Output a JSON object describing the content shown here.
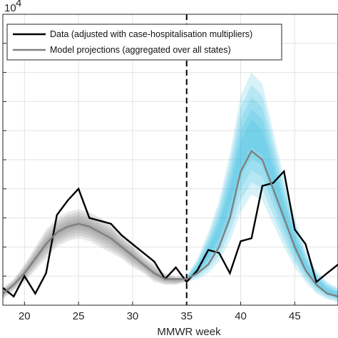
{
  "chart_data": {
    "type": "line",
    "xlabel": "MMWR week",
    "xlim": [
      18,
      49
    ],
    "ylim": [
      0,
      10
    ],
    "y_exponent": "× 10^4",
    "exponent_base": "10",
    "exponent_power": "4",
    "x_ticks": [
      20,
      25,
      30,
      35,
      40,
      45
    ],
    "y_ticks": [
      1,
      2,
      3,
      4,
      5,
      6,
      7,
      8,
      9,
      10
    ],
    "grid": true,
    "legend_position": "top-left",
    "vertical_line": {
      "x": 35,
      "style": "dashed"
    },
    "series": [
      {
        "name": "Data (adjusted with case-hospitalisation multipliers)",
        "color": "#000000",
        "x": [
          18,
          19,
          20,
          21,
          22,
          23,
          24,
          25,
          26,
          27,
          28,
          29,
          30,
          31,
          32,
          33,
          34,
          35,
          36,
          37,
          38,
          39,
          40,
          41,
          42,
          43,
          44,
          45,
          46,
          47,
          48,
          49
        ],
        "values": [
          0.6,
          0.3,
          1.0,
          0.4,
          1.1,
          3.1,
          3.6,
          4.0,
          3.0,
          2.9,
          2.8,
          2.4,
          2.1,
          1.8,
          1.5,
          0.9,
          1.3,
          0.8,
          1.2,
          1.9,
          1.8,
          1.1,
          2.2,
          2.3,
          4.1,
          4.2,
          4.6,
          2.6,
          2.1,
          0.8,
          1.1,
          1.4
        ]
      },
      {
        "name": "Model projections (aggregated over all states)",
        "color": "#808080",
        "x": [
          18,
          19,
          20,
          21,
          22,
          23,
          24,
          25,
          26,
          27,
          28,
          29,
          30,
          31,
          32,
          33,
          34,
          35,
          36,
          37,
          38,
          39,
          40,
          41,
          42,
          43,
          44,
          45,
          46,
          47,
          48,
          49
        ],
        "values": [
          0.4,
          0.7,
          1.1,
          1.6,
          2.1,
          2.5,
          2.7,
          2.8,
          2.7,
          2.5,
          2.3,
          2.0,
          1.7,
          1.4,
          1.1,
          0.9,
          0.9,
          0.9,
          1.1,
          1.4,
          2.0,
          3.0,
          4.6,
          5.3,
          5.0,
          4.0,
          3.0,
          2.0,
          1.2,
          0.7,
          0.4,
          0.3
        ]
      }
    ],
    "uncertainty_bands": [
      {
        "x": [
          18,
          19,
          20,
          21,
          22,
          23,
          24,
          25,
          26,
          27,
          28,
          29,
          30,
          31,
          32,
          33,
          34,
          35
        ],
        "lower": [
          0.2,
          0.5,
          0.8,
          1.2,
          1.6,
          2.0,
          2.2,
          2.3,
          2.2,
          2.0,
          1.8,
          1.6,
          1.3,
          1.1,
          0.8,
          0.7,
          0.7,
          0.8
        ],
        "upper": [
          0.6,
          0.9,
          1.4,
          2.0,
          2.6,
          3.0,
          3.2,
          3.3,
          3.2,
          3.0,
          2.8,
          2.4,
          2.1,
          1.7,
          1.4,
          1.1,
          1.0,
          1.0
        ],
        "color": "#808080"
      },
      {
        "x": [
          35,
          36,
          37,
          38,
          39,
          40,
          41,
          42,
          43,
          44,
          45,
          46,
          47,
          48,
          49
        ],
        "lower": [
          0.8,
          0.9,
          1.1,
          1.5,
          2.2,
          3.2,
          3.8,
          3.6,
          2.8,
          2.0,
          1.3,
          0.8,
          0.4,
          0.2,
          0.1
        ],
        "upper": [
          1.0,
          1.6,
          2.5,
          3.6,
          5.2,
          7.2,
          8.0,
          7.6,
          6.0,
          4.4,
          3.0,
          1.9,
          1.2,
          0.8,
          0.6
        ],
        "color": "#29b7e0"
      }
    ]
  }
}
